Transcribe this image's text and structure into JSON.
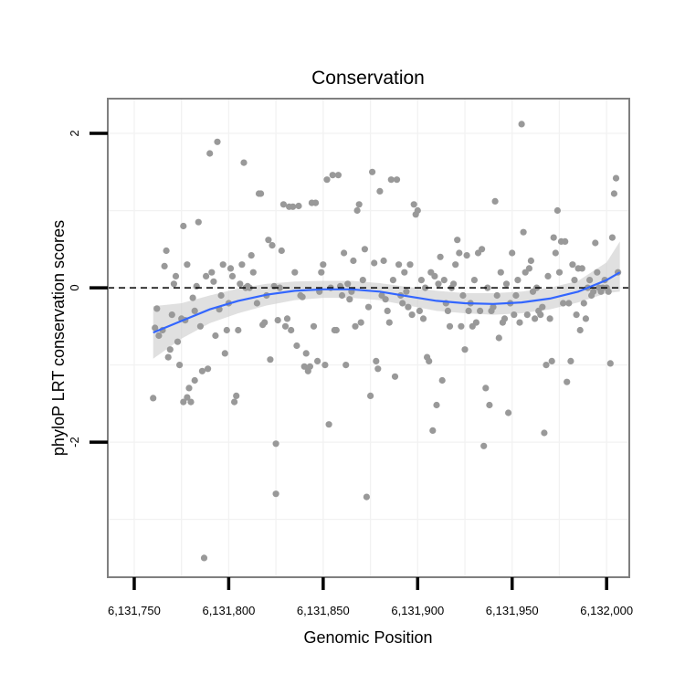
{
  "chart_data": {
    "type": "scatter",
    "title": "Conservation",
    "xlabel": "Genomic Position",
    "ylabel": "phyloP LRT conservation scores",
    "xlim": [
      6131736,
      6132012
    ],
    "ylim": [
      -3.75,
      2.45
    ],
    "xticks": [
      6131750,
      6131800,
      6131850,
      6131900,
      6131950,
      6132000
    ],
    "xtick_labels": [
      "6,131,750",
      "6,131,800",
      "6,131,850",
      "6,131,900",
      "6,131,950",
      "6,132,000"
    ],
    "yticks": [
      -2,
      0,
      2
    ],
    "ytick_labels": [
      "-2",
      "0",
      "2"
    ],
    "grid": true,
    "reference_line": {
      "y": 0,
      "style": "dashed"
    },
    "colors": {
      "points": "#999999",
      "smooth_line": "#3366ff",
      "ribbon": "#cccccc",
      "reference_line": "#000000"
    },
    "points": [
      {
        "x": 6131760,
        "y": -1.43
      },
      {
        "x": 6131761,
        "y": -0.52
      },
      {
        "x": 6131762,
        "y": -0.27
      },
      {
        "x": 6131763,
        "y": -0.62
      },
      {
        "x": 6131765,
        "y": -0.55
      },
      {
        "x": 6131766,
        "y": 0.28
      },
      {
        "x": 6131767,
        "y": 0.48
      },
      {
        "x": 6131768,
        "y": -0.9
      },
      {
        "x": 6131769,
        "y": -0.8
      },
      {
        "x": 6131770,
        "y": -0.35
      },
      {
        "x": 6131771,
        "y": 0.05
      },
      {
        "x": 6131772,
        "y": 0.15
      },
      {
        "x": 6131773,
        "y": -0.7
      },
      {
        "x": 6131774,
        "y": -1.0
      },
      {
        "x": 6131775,
        "y": -0.4
      },
      {
        "x": 6131776,
        "y": 0.8
      },
      {
        "x": 6131776,
        "y": -1.48
      },
      {
        "x": 6131777,
        "y": -0.42
      },
      {
        "x": 6131778,
        "y": 0.3
      },
      {
        "x": 6131778,
        "y": -1.42
      },
      {
        "x": 6131779,
        "y": -1.3
      },
      {
        "x": 6131780,
        "y": -1.48
      },
      {
        "x": 6131781,
        "y": -0.13
      },
      {
        "x": 6131782,
        "y": -1.2
      },
      {
        "x": 6131782,
        "y": -0.3
      },
      {
        "x": 6131783,
        "y": 0.02
      },
      {
        "x": 6131784,
        "y": 0.85
      },
      {
        "x": 6131785,
        "y": -0.5
      },
      {
        "x": 6131786,
        "y": -1.08
      },
      {
        "x": 6131787,
        "y": -3.5
      },
      {
        "x": 6131788,
        "y": 0.15
      },
      {
        "x": 6131789,
        "y": -1.05
      },
      {
        "x": 6131790,
        "y": 1.74
      },
      {
        "x": 6131791,
        "y": 0.2
      },
      {
        "x": 6131792,
        "y": 0.08
      },
      {
        "x": 6131793,
        "y": -0.62
      },
      {
        "x": 6131794,
        "y": 1.89
      },
      {
        "x": 6131795,
        "y": -0.28
      },
      {
        "x": 6131796,
        "y": -0.1
      },
      {
        "x": 6131797,
        "y": 0.3
      },
      {
        "x": 6131798,
        "y": -0.85
      },
      {
        "x": 6131799,
        "y": -0.55
      },
      {
        "x": 6131800,
        "y": -0.2
      },
      {
        "x": 6131801,
        "y": 0.25
      },
      {
        "x": 6131802,
        "y": 0.15
      },
      {
        "x": 6131803,
        "y": -1.48
      },
      {
        "x": 6131804,
        "y": -1.4
      },
      {
        "x": 6131805,
        "y": -0.55
      },
      {
        "x": 6131806,
        "y": 0.05
      },
      {
        "x": 6131807,
        "y": 0.3
      },
      {
        "x": 6131808,
        "y": 1.62
      },
      {
        "x": 6131809,
        "y": 0.0
      },
      {
        "x": 6131810,
        "y": 0.02
      },
      {
        "x": 6131811,
        "y": 0.0
      },
      {
        "x": 6131812,
        "y": 0.42
      },
      {
        "x": 6131813,
        "y": 0.2
      },
      {
        "x": 6131815,
        "y": -0.2
      },
      {
        "x": 6131816,
        "y": 1.22
      },
      {
        "x": 6131817,
        "y": 1.22
      },
      {
        "x": 6131818,
        "y": -0.48
      },
      {
        "x": 6131819,
        "y": -0.45
      },
      {
        "x": 6131820,
        "y": -0.1
      },
      {
        "x": 6131821,
        "y": 0.62
      },
      {
        "x": 6131822,
        "y": -0.93
      },
      {
        "x": 6131823,
        "y": 0.55
      },
      {
        "x": 6131824,
        "y": 0.02
      },
      {
        "x": 6131825,
        "y": -2.67
      },
      {
        "x": 6131825,
        "y": -2.02
      },
      {
        "x": 6131826,
        "y": -0.42
      },
      {
        "x": 6131827,
        "y": 0.0
      },
      {
        "x": 6131828,
        "y": 0.48
      },
      {
        "x": 6131829,
        "y": 1.08
      },
      {
        "x": 6131830,
        "y": -0.5
      },
      {
        "x": 6131831,
        "y": -0.4
      },
      {
        "x": 6131832,
        "y": 1.05
      },
      {
        "x": 6131833,
        "y": -0.55
      },
      {
        "x": 6131834,
        "y": 1.05
      },
      {
        "x": 6131835,
        "y": 0.2
      },
      {
        "x": 6131836,
        "y": -0.75
      },
      {
        "x": 6131837,
        "y": 1.06
      },
      {
        "x": 6131838,
        "y": -0.1
      },
      {
        "x": 6131839,
        "y": -0.12
      },
      {
        "x": 6131840,
        "y": -1.02
      },
      {
        "x": 6131841,
        "y": -0.85
      },
      {
        "x": 6131842,
        "y": -1.08
      },
      {
        "x": 6131843,
        "y": -1.02
      },
      {
        "x": 6131844,
        "y": 1.1
      },
      {
        "x": 6131845,
        "y": -0.5
      },
      {
        "x": 6131846,
        "y": 1.1
      },
      {
        "x": 6131847,
        "y": -0.95
      },
      {
        "x": 6131848,
        "y": -0.05
      },
      {
        "x": 6131849,
        "y": 0.2
      },
      {
        "x": 6131850,
        "y": 0.3
      },
      {
        "x": 6131851,
        "y": -1.0
      },
      {
        "x": 6131852,
        "y": 1.4
      },
      {
        "x": 6131853,
        "y": -1.77
      },
      {
        "x": 6131854,
        "y": 0.0
      },
      {
        "x": 6131855,
        "y": 1.46
      },
      {
        "x": 6131856,
        "y": -0.55
      },
      {
        "x": 6131857,
        "y": -0.55
      },
      {
        "x": 6131858,
        "y": 1.46
      },
      {
        "x": 6131859,
        "y": 0.02
      },
      {
        "x": 6131860,
        "y": -0.1
      },
      {
        "x": 6131861,
        "y": 0.45
      },
      {
        "x": 6131862,
        "y": -1.0
      },
      {
        "x": 6131863,
        "y": 0.05
      },
      {
        "x": 6131864,
        "y": -0.15
      },
      {
        "x": 6131865,
        "y": -0.05
      },
      {
        "x": 6131866,
        "y": 0.35
      },
      {
        "x": 6131867,
        "y": -0.5
      },
      {
        "x": 6131868,
        "y": 1.0
      },
      {
        "x": 6131869,
        "y": 1.08
      },
      {
        "x": 6131870,
        "y": -0.45
      },
      {
        "x": 6131871,
        "y": 0.1
      },
      {
        "x": 6131872,
        "y": 0.5
      },
      {
        "x": 6131873,
        "y": -2.71
      },
      {
        "x": 6131874,
        "y": -0.25
      },
      {
        "x": 6131875,
        "y": -1.4
      },
      {
        "x": 6131876,
        "y": 1.5
      },
      {
        "x": 6131877,
        "y": 0.32
      },
      {
        "x": 6131878,
        "y": -0.95
      },
      {
        "x": 6131879,
        "y": -1.05
      },
      {
        "x": 6131880,
        "y": 1.25
      },
      {
        "x": 6131881,
        "y": -0.1
      },
      {
        "x": 6131882,
        "y": 0.35
      },
      {
        "x": 6131883,
        "y": -0.15
      },
      {
        "x": 6131884,
        "y": -0.3
      },
      {
        "x": 6131885,
        "y": -0.45
      },
      {
        "x": 6131886,
        "y": 1.4
      },
      {
        "x": 6131887,
        "y": 0.1
      },
      {
        "x": 6131888,
        "y": -1.15
      },
      {
        "x": 6131889,
        "y": 1.4
      },
      {
        "x": 6131890,
        "y": 0.3
      },
      {
        "x": 6131891,
        "y": -0.1
      },
      {
        "x": 6131892,
        "y": -0.2
      },
      {
        "x": 6131893,
        "y": 0.2
      },
      {
        "x": 6131894,
        "y": -0.05
      },
      {
        "x": 6131895,
        "y": -0.25
      },
      {
        "x": 6131896,
        "y": 0.3
      },
      {
        "x": 6131897,
        "y": -0.35
      },
      {
        "x": 6131898,
        "y": 1.08
      },
      {
        "x": 6131899,
        "y": 0.95
      },
      {
        "x": 6131900,
        "y": 1.0
      },
      {
        "x": 6131901,
        "y": -0.3
      },
      {
        "x": 6131902,
        "y": 0.1
      },
      {
        "x": 6131903,
        "y": -0.4
      },
      {
        "x": 6131904,
        "y": 0.0
      },
      {
        "x": 6131905,
        "y": -0.9
      },
      {
        "x": 6131906,
        "y": -0.95
      },
      {
        "x": 6131907,
        "y": 0.2
      },
      {
        "x": 6131908,
        "y": -1.85
      },
      {
        "x": 6131909,
        "y": 0.15
      },
      {
        "x": 6131910,
        "y": -1.52
      },
      {
        "x": 6131911,
        "y": 0.05
      },
      {
        "x": 6131912,
        "y": 0.4
      },
      {
        "x": 6131913,
        "y": -1.2
      },
      {
        "x": 6131914,
        "y": 0.1
      },
      {
        "x": 6131915,
        "y": -0.2
      },
      {
        "x": 6131916,
        "y": -0.3
      },
      {
        "x": 6131917,
        "y": -0.5
      },
      {
        "x": 6131918,
        "y": 0.0
      },
      {
        "x": 6131919,
        "y": 0.05
      },
      {
        "x": 6131920,
        "y": 0.3
      },
      {
        "x": 6131921,
        "y": 0.62
      },
      {
        "x": 6131922,
        "y": 0.45
      },
      {
        "x": 6131923,
        "y": -0.5
      },
      {
        "x": 6131924,
        "y": -0.1
      },
      {
        "x": 6131925,
        "y": -0.8
      },
      {
        "x": 6131926,
        "y": 0.42
      },
      {
        "x": 6131927,
        "y": -0.3
      },
      {
        "x": 6131928,
        "y": -0.2
      },
      {
        "x": 6131929,
        "y": -0.5
      },
      {
        "x": 6131930,
        "y": 0.1
      },
      {
        "x": 6131931,
        "y": -0.45
      },
      {
        "x": 6131932,
        "y": 0.45
      },
      {
        "x": 6131933,
        "y": -0.3
      },
      {
        "x": 6131934,
        "y": 0.5
      },
      {
        "x": 6131935,
        "y": -2.05
      },
      {
        "x": 6131936,
        "y": -1.3
      },
      {
        "x": 6131937,
        "y": 0.0
      },
      {
        "x": 6131938,
        "y": -1.52
      },
      {
        "x": 6131939,
        "y": -0.3
      },
      {
        "x": 6131940,
        "y": -0.25
      },
      {
        "x": 6131941,
        "y": 1.12
      },
      {
        "x": 6131942,
        "y": -0.1
      },
      {
        "x": 6131943,
        "y": -0.65
      },
      {
        "x": 6131944,
        "y": 0.2
      },
      {
        "x": 6131945,
        "y": -0.45
      },
      {
        "x": 6131946,
        "y": -0.4
      },
      {
        "x": 6131947,
        "y": 0.05
      },
      {
        "x": 6131948,
        "y": -1.62
      },
      {
        "x": 6131949,
        "y": -0.2
      },
      {
        "x": 6131950,
        "y": 0.45
      },
      {
        "x": 6131951,
        "y": -0.35
      },
      {
        "x": 6131952,
        "y": -0.1
      },
      {
        "x": 6131953,
        "y": 0.1
      },
      {
        "x": 6131954,
        "y": -0.45
      },
      {
        "x": 6131955,
        "y": 2.12
      },
      {
        "x": 6131956,
        "y": 0.72
      },
      {
        "x": 6131957,
        "y": 0.2
      },
      {
        "x": 6131958,
        "y": -0.35
      },
      {
        "x": 6131959,
        "y": 0.25
      },
      {
        "x": 6131960,
        "y": 0.35
      },
      {
        "x": 6131961,
        "y": -0.05
      },
      {
        "x": 6131962,
        "y": -0.4
      },
      {
        "x": 6131963,
        "y": 0.0
      },
      {
        "x": 6131964,
        "y": -0.3
      },
      {
        "x": 6131965,
        "y": -0.35
      },
      {
        "x": 6131966,
        "y": -0.25
      },
      {
        "x": 6131967,
        "y": -1.88
      },
      {
        "x": 6131968,
        "y": -1.0
      },
      {
        "x": 6131969,
        "y": 0.15
      },
      {
        "x": 6131970,
        "y": -0.4
      },
      {
        "x": 6131971,
        "y": -0.95
      },
      {
        "x": 6131972,
        "y": 0.65
      },
      {
        "x": 6131973,
        "y": 0.45
      },
      {
        "x": 6131974,
        "y": 1.0
      },
      {
        "x": 6131975,
        "y": 0.2
      },
      {
        "x": 6131976,
        "y": 0.6
      },
      {
        "x": 6131977,
        "y": -0.2
      },
      {
        "x": 6131978,
        "y": 0.6
      },
      {
        "x": 6131979,
        "y": -1.22
      },
      {
        "x": 6131980,
        "y": -0.2
      },
      {
        "x": 6131981,
        "y": -0.95
      },
      {
        "x": 6131982,
        "y": 0.3
      },
      {
        "x": 6131983,
        "y": 0.1
      },
      {
        "x": 6131984,
        "y": -0.35
      },
      {
        "x": 6131985,
        "y": 0.25
      },
      {
        "x": 6131986,
        "y": -0.55
      },
      {
        "x": 6131987,
        "y": 0.25
      },
      {
        "x": 6131988,
        "y": -0.2
      },
      {
        "x": 6131989,
        "y": -0.4
      },
      {
        "x": 6131990,
        "y": 0.0
      },
      {
        "x": 6131991,
        "y": 0.1
      },
      {
        "x": 6131992,
        "y": -0.1
      },
      {
        "x": 6131993,
        "y": -0.05
      },
      {
        "x": 6131994,
        "y": 0.58
      },
      {
        "x": 6131995,
        "y": 0.2
      },
      {
        "x": 6131996,
        "y": 0.0
      },
      {
        "x": 6131997,
        "y": -0.05
      },
      {
        "x": 6131998,
        "y": 0.0
      },
      {
        "x": 6131999,
        "y": 0.1
      },
      {
        "x": 6132000,
        "y": 0.0
      },
      {
        "x": 6132001,
        "y": -0.05
      },
      {
        "x": 6132002,
        "y": -0.98
      },
      {
        "x": 6132003,
        "y": 0.65
      },
      {
        "x": 6132004,
        "y": 1.22
      },
      {
        "x": 6132005,
        "y": 1.42
      },
      {
        "x": 6132006,
        "y": 0.2
      }
    ],
    "smooth": {
      "x": [
        6131760,
        6131775,
        6131790,
        6131805,
        6131820,
        6131835,
        6131850,
        6131865,
        6131880,
        6131895,
        6131910,
        6131925,
        6131940,
        6131955,
        6131970,
        6131985,
        6132000,
        6132007
      ],
      "y": [
        -0.58,
        -0.43,
        -0.28,
        -0.17,
        -0.09,
        -0.04,
        -0.02,
        -0.02,
        -0.05,
        -0.11,
        -0.17,
        -0.2,
        -0.21,
        -0.19,
        -0.14,
        -0.05,
        0.1,
        0.2
      ],
      "lower": [
        -0.92,
        -0.66,
        -0.46,
        -0.33,
        -0.23,
        -0.16,
        -0.13,
        -0.13,
        -0.16,
        -0.23,
        -0.3,
        -0.33,
        -0.35,
        -0.33,
        -0.28,
        -0.19,
        -0.07,
        -0.05
      ],
      "upper": [
        -0.24,
        -0.2,
        -0.1,
        -0.01,
        0.05,
        0.08,
        0.09,
        0.09,
        0.06,
        0.01,
        -0.04,
        -0.07,
        -0.07,
        -0.05,
        0.0,
        0.09,
        0.33,
        0.6
      ]
    }
  }
}
